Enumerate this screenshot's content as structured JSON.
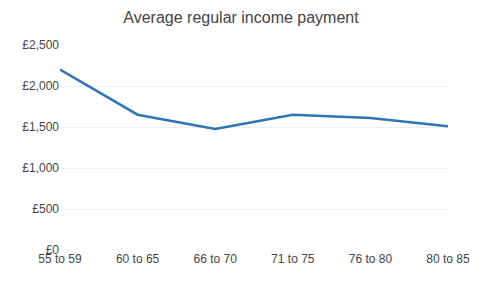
{
  "chart_data": {
    "type": "line",
    "title": "Average regular income payment",
    "categories": [
      "55 to 59",
      "60 to 65",
      "66 to 70",
      "71 to 75",
      "76 to 80",
      "80 to 85"
    ],
    "values": [
      2200,
      1650,
      1475,
      1650,
      1610,
      1510
    ],
    "color": "#2E75B6",
    "ylim": [
      0,
      2500
    ],
    "yticks": [
      {
        "value": 0,
        "label": "£0"
      },
      {
        "value": 500,
        "label": "£500"
      },
      {
        "value": 1000,
        "label": "£1,000"
      },
      {
        "value": 1500,
        "label": "£1,500"
      },
      {
        "value": 2000,
        "label": "£2,000"
      },
      {
        "value": 2500,
        "label": "£2,500"
      }
    ],
    "grid": true
  }
}
